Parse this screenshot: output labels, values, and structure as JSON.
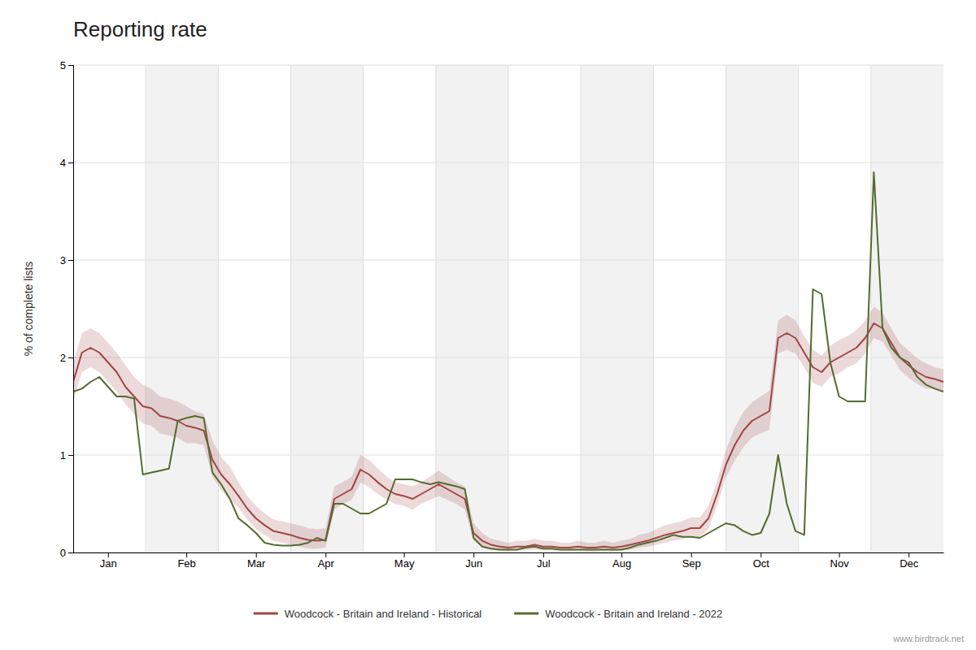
{
  "chart_data": {
    "type": "line",
    "title": "Reporting rate",
    "ylabel": "% of complete lists",
    "annotations": [
      "www.birdtrack.net"
    ],
    "ylim": [
      0,
      5
    ],
    "yticks": [
      0,
      1,
      2,
      3,
      4,
      5
    ],
    "grid": true,
    "legend": "bottom",
    "categories": [
      null,
      null,
      null,
      null,
      "Jan",
      null,
      null,
      null,
      null,
      null,
      null,
      null,
      null,
      "Feb",
      null,
      null,
      null,
      null,
      null,
      null,
      null,
      "Mar",
      null,
      null,
      null,
      null,
      null,
      null,
      null,
      "Apr",
      null,
      null,
      null,
      null,
      null,
      null,
      null,
      null,
      "May",
      null,
      null,
      null,
      null,
      null,
      null,
      null,
      "Jun",
      null,
      null,
      null,
      null,
      null,
      null,
      null,
      "Jul",
      null,
      null,
      null,
      null,
      null,
      null,
      null,
      null,
      "Aug",
      null,
      null,
      null,
      null,
      null,
      null,
      null,
      "Sep",
      null,
      null,
      null,
      null,
      null,
      null,
      null,
      "Oct",
      null,
      null,
      null,
      null,
      null,
      null,
      null,
      null,
      "Nov",
      null,
      null,
      null,
      null,
      null,
      null,
      null,
      "Dec",
      null,
      null,
      null,
      null
    ],
    "series": [
      {
        "name": "Woodcock - Britain and Ireland - Historical",
        "color": "#a04545",
        "values": [
          1.75,
          2.05,
          2.1,
          2.05,
          1.95,
          1.85,
          1.7,
          1.6,
          1.5,
          1.48,
          1.4,
          1.38,
          1.35,
          1.3,
          1.28,
          1.25,
          0.95,
          0.8,
          0.7,
          0.58,
          0.45,
          0.35,
          0.28,
          0.22,
          0.2,
          0.18,
          0.15,
          0.13,
          0.12,
          0.13,
          0.55,
          0.6,
          0.65,
          0.85,
          0.8,
          0.72,
          0.65,
          0.6,
          0.58,
          0.55,
          0.6,
          0.65,
          0.7,
          0.65,
          0.6,
          0.55,
          0.2,
          0.12,
          0.08,
          0.06,
          0.05,
          0.06,
          0.06,
          0.08,
          0.06,
          0.06,
          0.05,
          0.05,
          0.06,
          0.05,
          0.05,
          0.06,
          0.05,
          0.06,
          0.08,
          0.1,
          0.12,
          0.15,
          0.18,
          0.2,
          0.22,
          0.25,
          0.25,
          0.35,
          0.6,
          0.9,
          1.1,
          1.25,
          1.35,
          1.4,
          1.45,
          2.2,
          2.25,
          2.2,
          2.05,
          1.9,
          1.85,
          1.95,
          2.0,
          2.05,
          2.1,
          2.2,
          2.35,
          2.3,
          2.15,
          2.0,
          1.92,
          1.85,
          1.8,
          1.78,
          1.75
        ],
        "upper": [
          1.95,
          2.25,
          2.3,
          2.25,
          2.15,
          2.05,
          1.92,
          1.8,
          1.72,
          1.68,
          1.6,
          1.58,
          1.55,
          1.5,
          1.45,
          1.42,
          1.15,
          0.98,
          0.88,
          0.72,
          0.58,
          0.48,
          0.4,
          0.34,
          0.32,
          0.3,
          0.28,
          0.25,
          0.24,
          0.25,
          0.68,
          0.72,
          0.78,
          1.0,
          0.95,
          0.86,
          0.78,
          0.72,
          0.7,
          0.68,
          0.72,
          0.78,
          0.84,
          0.78,
          0.72,
          0.68,
          0.3,
          0.2,
          0.14,
          0.12,
          0.1,
          0.12,
          0.12,
          0.14,
          0.12,
          0.12,
          0.1,
          0.1,
          0.12,
          0.1,
          0.1,
          0.12,
          0.1,
          0.12,
          0.14,
          0.18,
          0.2,
          0.24,
          0.28,
          0.3,
          0.32,
          0.36,
          0.36,
          0.48,
          0.74,
          1.05,
          1.28,
          1.44,
          1.54,
          1.6,
          1.66,
          2.38,
          2.44,
          2.38,
          2.22,
          2.08,
          2.02,
          2.12,
          2.18,
          2.22,
          2.28,
          2.38,
          2.52,
          2.46,
          2.3,
          2.15,
          2.07,
          1.99,
          1.94,
          1.9,
          1.88
        ],
        "lower": [
          1.55,
          1.85,
          1.9,
          1.85,
          1.75,
          1.65,
          1.52,
          1.42,
          1.32,
          1.3,
          1.22,
          1.2,
          1.18,
          1.12,
          1.12,
          1.1,
          0.78,
          0.64,
          0.54,
          0.46,
          0.34,
          0.24,
          0.18,
          0.12,
          0.1,
          0.08,
          0.06,
          0.04,
          0.04,
          0.05,
          0.44,
          0.5,
          0.54,
          0.72,
          0.67,
          0.6,
          0.54,
          0.5,
          0.48,
          0.44,
          0.5,
          0.54,
          0.58,
          0.54,
          0.5,
          0.44,
          0.12,
          0.06,
          0.03,
          0.02,
          0.01,
          0.02,
          0.02,
          0.03,
          0.02,
          0.02,
          0.01,
          0.01,
          0.02,
          0.01,
          0.01,
          0.02,
          0.01,
          0.02,
          0.03,
          0.05,
          0.06,
          0.08,
          0.1,
          0.12,
          0.14,
          0.16,
          0.16,
          0.24,
          0.48,
          0.77,
          0.94,
          1.08,
          1.18,
          1.22,
          1.26,
          2.04,
          2.08,
          2.04,
          1.9,
          1.74,
          1.7,
          1.8,
          1.84,
          1.9,
          1.94,
          2.04,
          2.2,
          2.16,
          2.02,
          1.87,
          1.79,
          1.73,
          1.68,
          1.68,
          1.64
        ]
      },
      {
        "name": "Woodcock - Britain and Ireland - 2022",
        "color": "#556b2f",
        "values": [
          1.65,
          1.68,
          1.75,
          1.8,
          1.7,
          1.6,
          1.6,
          1.58,
          0.8,
          0.82,
          0.84,
          0.86,
          1.35,
          1.38,
          1.4,
          1.38,
          0.82,
          0.7,
          0.55,
          0.35,
          0.28,
          0.2,
          0.1,
          0.08,
          0.07,
          0.07,
          0.08,
          0.1,
          0.15,
          0.12,
          0.5,
          0.5,
          0.45,
          0.4,
          0.4,
          0.45,
          0.5,
          0.75,
          0.75,
          0.75,
          0.72,
          0.7,
          0.72,
          0.7,
          0.68,
          0.65,
          0.15,
          0.06,
          0.04,
          0.03,
          0.03,
          0.03,
          0.05,
          0.06,
          0.04,
          0.04,
          0.03,
          0.03,
          0.03,
          0.03,
          0.03,
          0.03,
          0.03,
          0.03,
          0.05,
          0.08,
          0.1,
          0.12,
          0.15,
          0.18,
          0.16,
          0.16,
          0.15,
          0.2,
          0.25,
          0.3,
          0.28,
          0.22,
          0.18,
          0.2,
          0.4,
          1.0,
          0.5,
          0.22,
          0.18,
          2.7,
          2.65,
          1.95,
          1.6,
          1.55,
          1.55,
          1.55,
          3.9,
          2.3,
          2.1,
          2.0,
          1.95,
          1.8,
          1.72,
          1.68,
          1.65
        ]
      }
    ]
  }
}
